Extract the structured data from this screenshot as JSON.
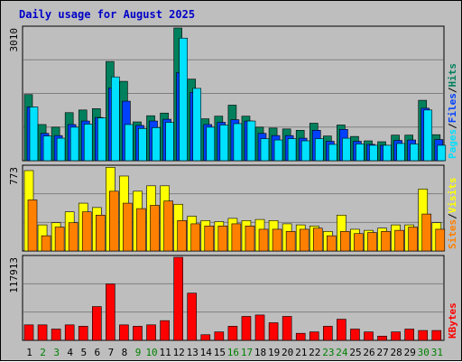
{
  "chart_data": [
    {
      "panel": "hits-files-pages",
      "type": "bar",
      "title": "Daily usage for August 2025",
      "ymax_label": "3010",
      "ylim": [
        0,
        3010
      ],
      "legend": [
        "Pages",
        "Files",
        "Hits"
      ],
      "categories": [
        "1",
        "2",
        "3",
        "4",
        "5",
        "6",
        "7",
        "8",
        "9",
        "10",
        "11",
        "12",
        "13",
        "14",
        "15",
        "16",
        "17",
        "18",
        "19",
        "20",
        "21",
        "22",
        "23",
        "24",
        "25",
        "26",
        "27",
        "28",
        "29",
        "30",
        "31"
      ],
      "series": [
        {
          "name": "Hits",
          "color": "#00805c",
          "values": [
            1500,
            820,
            760,
            1090,
            1150,
            1180,
            2250,
            1800,
            880,
            1020,
            1080,
            3010,
            1850,
            950,
            1010,
            1260,
            1010,
            760,
            740,
            720,
            690,
            850,
            560,
            810,
            550,
            450,
            430,
            580,
            580,
            1370,
            590
          ]
        },
        {
          "name": "Files",
          "color": "#0040ff",
          "values": [
            1220,
            620,
            570,
            820,
            900,
            980,
            1650,
            1350,
            800,
            900,
            940,
            2000,
            1550,
            820,
            870,
            930,
            900,
            620,
            570,
            570,
            510,
            690,
            440,
            710,
            440,
            370,
            350,
            460,
            470,
            1190,
            480
          ]
        },
        {
          "name": "Pages",
          "color": "#00e0ff",
          "values": [
            1220,
            560,
            510,
            760,
            830,
            970,
            1900,
            820,
            730,
            750,
            870,
            2780,
            1640,
            760,
            810,
            840,
            900,
            500,
            470,
            500,
            450,
            500,
            370,
            510,
            380,
            350,
            350,
            390,
            380,
            1150,
            350
          ]
        }
      ]
    },
    {
      "panel": "sites-visits",
      "type": "bar",
      "ymax_label": "773",
      "ylim": [
        0,
        773
      ],
      "legend": [
        "Sites",
        "Visits"
      ],
      "categories": [
        "1",
        "2",
        "3",
        "4",
        "5",
        "6",
        "7",
        "8",
        "9",
        "10",
        "11",
        "12",
        "13",
        "14",
        "15",
        "16",
        "17",
        "18",
        "19",
        "20",
        "21",
        "22",
        "23",
        "24",
        "25",
        "26",
        "27",
        "28",
        "29",
        "30",
        "31"
      ],
      "series": [
        {
          "name": "Visits",
          "color": "#ffff00",
          "values": [
            740,
            240,
            260,
            360,
            440,
            400,
            770,
            690,
            550,
            600,
            600,
            430,
            320,
            280,
            270,
            300,
            280,
            290,
            280,
            250,
            240,
            230,
            180,
            330,
            200,
            190,
            210,
            240,
            240,
            570,
            260
          ]
        },
        {
          "name": "Sites",
          "color": "#ff8000",
          "values": [
            470,
            140,
            220,
            260,
            360,
            330,
            550,
            440,
            390,
            420,
            460,
            280,
            250,
            230,
            230,
            250,
            230,
            200,
            200,
            180,
            200,
            210,
            140,
            180,
            160,
            170,
            180,
            190,
            220,
            340,
            200
          ]
        }
      ]
    },
    {
      "panel": "kbytes",
      "type": "bar",
      "ymax_label": "117913",
      "ylim": [
        0,
        117913
      ],
      "legend": [
        "KBytes"
      ],
      "categories": [
        "1",
        "2",
        "3",
        "4",
        "5",
        "6",
        "7",
        "8",
        "9",
        "10",
        "11",
        "12",
        "13",
        "14",
        "15",
        "16",
        "17",
        "18",
        "19",
        "20",
        "21",
        "22",
        "23",
        "24",
        "25",
        "26",
        "27",
        "28",
        "29",
        "30",
        "31"
      ],
      "series": [
        {
          "name": "KBytes",
          "color": "#ff0000",
          "values": [
            22000,
            22000,
            16000,
            22000,
            20000,
            48000,
            80000,
            22000,
            20000,
            22000,
            28000,
            117913,
            67000,
            8000,
            12000,
            20000,
            34000,
            36000,
            25000,
            34000,
            10000,
            12000,
            20000,
            30000,
            16000,
            12000,
            6000,
            12000,
            16000,
            14000,
            14000
          ]
        }
      ]
    }
  ],
  "weekend_days": [
    2,
    3,
    9,
    10,
    16,
    17,
    23,
    24,
    30,
    31
  ],
  "colors": {
    "background": "#bebebe",
    "grid": "#808080",
    "title": "#0000c8",
    "weekday_label": "#000000",
    "weekend_label": "#008000"
  }
}
